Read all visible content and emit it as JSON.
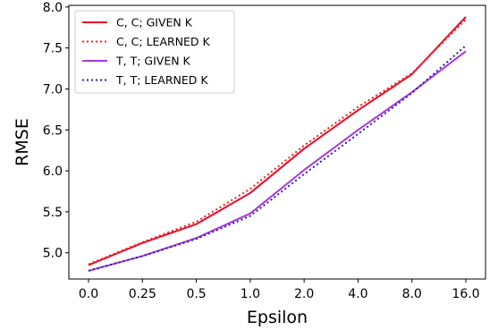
{
  "chart_data": {
    "type": "line",
    "xlabel": "Epsilon",
    "ylabel": "RMSE",
    "categories": [
      "0.0",
      "0.25",
      "0.5",
      "1.0",
      "2.0",
      "4.0",
      "8.0",
      "16.0"
    ],
    "ylim": [
      4.68,
      8.02
    ],
    "yticks": [
      5.0,
      5.5,
      6.0,
      6.5,
      7.0,
      7.5,
      8.0
    ],
    "ytick_labels": [
      "5.0",
      "5.5",
      "6.0",
      "6.5",
      "7.0",
      "7.5",
      "8.0"
    ],
    "grid": false,
    "legend_position": "top-left",
    "series": [
      {
        "name": "C, C; GIVEN K",
        "color": "#e0102a",
        "style": "solid",
        "values": [
          4.85,
          5.12,
          5.35,
          5.73,
          6.27,
          6.74,
          7.18,
          7.88
        ]
      },
      {
        "name": "C, C; LEARNED K",
        "color": "#ff1a1a",
        "style": "dotted",
        "values": [
          4.86,
          5.13,
          5.38,
          5.78,
          6.31,
          6.78,
          7.19,
          7.85
        ]
      },
      {
        "name": "T, T; GIVEN K",
        "color": "#a838e0",
        "style": "solid",
        "values": [
          4.78,
          4.96,
          5.18,
          5.48,
          6.01,
          6.5,
          6.96,
          7.46
        ]
      },
      {
        "name": "T, T; LEARNED K",
        "color": "#2a1fb0",
        "style": "dotted",
        "values": [
          4.78,
          4.96,
          5.17,
          5.45,
          5.96,
          6.45,
          6.95,
          7.53
        ]
      }
    ]
  }
}
